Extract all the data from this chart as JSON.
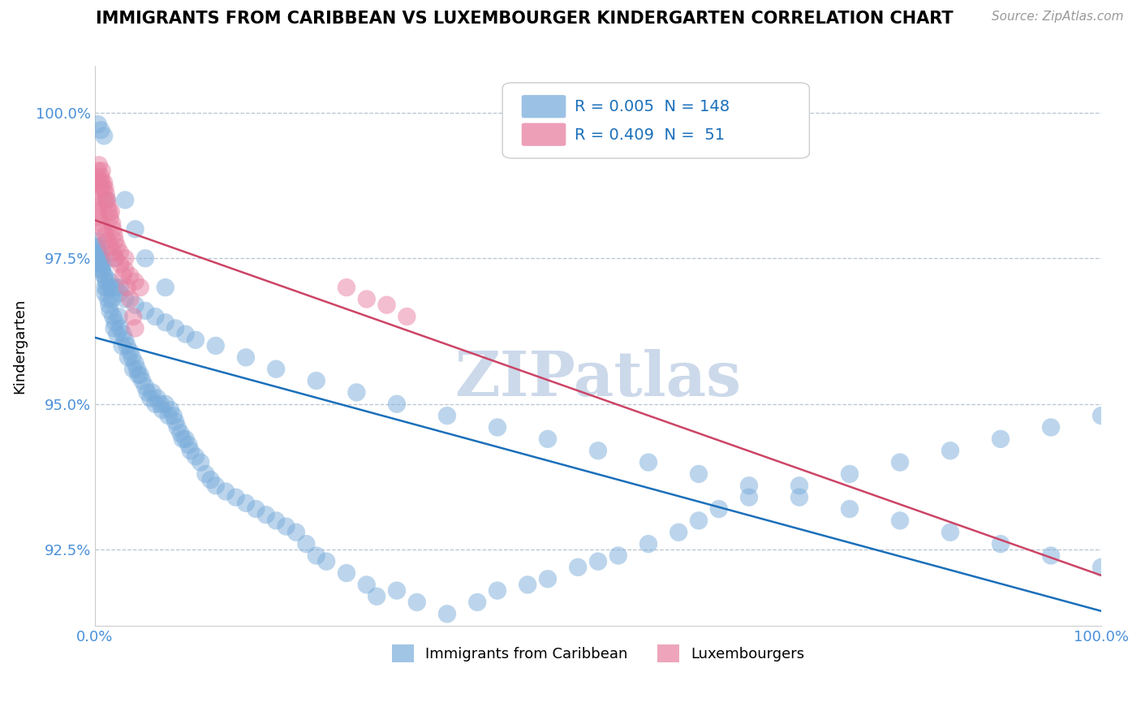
{
  "title": "IMMIGRANTS FROM CARIBBEAN VS LUXEMBOURGER KINDERGARTEN CORRELATION CHART",
  "source_text": "Source: ZipAtlas.com",
  "ylabel": "Kindergarten",
  "xlim": [
    0.0,
    1.0
  ],
  "ylim": [
    0.912,
    1.008
  ],
  "yticks": [
    0.925,
    0.95,
    0.975,
    1.0
  ],
  "ytick_labels": [
    "92.5%",
    "95.0%",
    "97.5%",
    "100.0%"
  ],
  "xtick_labels": [
    "0.0%",
    "100.0%"
  ],
  "xticks": [
    0.0,
    1.0
  ],
  "blue_color": "#7aaddb",
  "pink_color": "#e87fa0",
  "blue_line_color": "#1a6fba",
  "pink_line_color": "#cc4466",
  "legend_r_blue": "0.005",
  "legend_n_blue": "148",
  "legend_r_pink": "0.409",
  "legend_n_pink": " 51",
  "watermark": "ZIPatlas",
  "watermark_color": "#ccd9ea",
  "blue_scatter_x": [
    0.001,
    0.002,
    0.003,
    0.003,
    0.004,
    0.005,
    0.005,
    0.006,
    0.007,
    0.007,
    0.008,
    0.009,
    0.01,
    0.01,
    0.011,
    0.012,
    0.013,
    0.014,
    0.015,
    0.016,
    0.017,
    0.018,
    0.019,
    0.02,
    0.022,
    0.024,
    0.025,
    0.027,
    0.028,
    0.03,
    0.032,
    0.033,
    0.035,
    0.037,
    0.038,
    0.04,
    0.042,
    0.043,
    0.045,
    0.047,
    0.05,
    0.052,
    0.055,
    0.057,
    0.06,
    0.062,
    0.065,
    0.067,
    0.07,
    0.073,
    0.075,
    0.078,
    0.08,
    0.082,
    0.085,
    0.087,
    0.09,
    0.093,
    0.095,
    0.1,
    0.105,
    0.11,
    0.115,
    0.12,
    0.13,
    0.14,
    0.15,
    0.16,
    0.17,
    0.18,
    0.19,
    0.2,
    0.21,
    0.22,
    0.23,
    0.25,
    0.27,
    0.28,
    0.3,
    0.32,
    0.35,
    0.38,
    0.4,
    0.43,
    0.45,
    0.48,
    0.5,
    0.52,
    0.55,
    0.58,
    0.6,
    0.62,
    0.65,
    0.7,
    0.75,
    0.8,
    0.85,
    0.9,
    0.95,
    1.0,
    0.001,
    0.002,
    0.003,
    0.005,
    0.006,
    0.007,
    0.01,
    0.015,
    0.02,
    0.025,
    0.03,
    0.04,
    0.05,
    0.06,
    0.07,
    0.08,
    0.09,
    0.1,
    0.12,
    0.15,
    0.18,
    0.22,
    0.26,
    0.3,
    0.35,
    0.4,
    0.45,
    0.5,
    0.55,
    0.6,
    0.65,
    0.7,
    0.75,
    0.8,
    0.85,
    0.9,
    0.95,
    1.0,
    0.003,
    0.006,
    0.009,
    0.012,
    0.02,
    0.025,
    0.03,
    0.04,
    0.05,
    0.07
  ],
  "blue_scatter_y": [
    0.977,
    0.976,
    0.978,
    0.975,
    0.975,
    0.974,
    0.976,
    0.977,
    0.973,
    0.975,
    0.974,
    0.972,
    0.97,
    0.969,
    0.971,
    0.97,
    0.968,
    0.967,
    0.966,
    0.97,
    0.968,
    0.965,
    0.963,
    0.964,
    0.962,
    0.965,
    0.963,
    0.96,
    0.962,
    0.961,
    0.96,
    0.958,
    0.959,
    0.958,
    0.956,
    0.957,
    0.956,
    0.955,
    0.955,
    0.954,
    0.953,
    0.952,
    0.951,
    0.952,
    0.95,
    0.951,
    0.95,
    0.949,
    0.95,
    0.948,
    0.949,
    0.948,
    0.947,
    0.946,
    0.945,
    0.944,
    0.944,
    0.943,
    0.942,
    0.941,
    0.94,
    0.938,
    0.937,
    0.936,
    0.935,
    0.934,
    0.933,
    0.932,
    0.931,
    0.93,
    0.929,
    0.928,
    0.926,
    0.924,
    0.923,
    0.921,
    0.919,
    0.917,
    0.918,
    0.916,
    0.914,
    0.916,
    0.918,
    0.919,
    0.92,
    0.922,
    0.923,
    0.924,
    0.926,
    0.928,
    0.93,
    0.932,
    0.934,
    0.936,
    0.938,
    0.94,
    0.942,
    0.944,
    0.946,
    0.948,
    0.975,
    0.977,
    0.976,
    0.975,
    0.974,
    0.973,
    0.972,
    0.971,
    0.97,
    0.969,
    0.968,
    0.967,
    0.966,
    0.965,
    0.964,
    0.963,
    0.962,
    0.961,
    0.96,
    0.958,
    0.956,
    0.954,
    0.952,
    0.95,
    0.948,
    0.946,
    0.944,
    0.942,
    0.94,
    0.938,
    0.936,
    0.934,
    0.932,
    0.93,
    0.928,
    0.926,
    0.924,
    0.922,
    0.998,
    0.997,
    0.996,
    0.985,
    0.975,
    0.97,
    0.985,
    0.98,
    0.975,
    0.97
  ],
  "pink_scatter_x": [
    0.001,
    0.002,
    0.003,
    0.004,
    0.005,
    0.005,
    0.006,
    0.007,
    0.007,
    0.008,
    0.009,
    0.01,
    0.01,
    0.011,
    0.012,
    0.013,
    0.014,
    0.015,
    0.016,
    0.017,
    0.018,
    0.019,
    0.02,
    0.022,
    0.025,
    0.028,
    0.03,
    0.032,
    0.035,
    0.038,
    0.04,
    0.001,
    0.002,
    0.003,
    0.004,
    0.006,
    0.008,
    0.01,
    0.012,
    0.015,
    0.018,
    0.02,
    0.025,
    0.03,
    0.035,
    0.04,
    0.045,
    0.25,
    0.27,
    0.29,
    0.31
  ],
  "pink_scatter_y": [
    0.988,
    0.989,
    0.99,
    0.991,
    0.988,
    0.987,
    0.989,
    0.99,
    0.988,
    0.987,
    0.988,
    0.985,
    0.987,
    0.986,
    0.985,
    0.984,
    0.983,
    0.982,
    0.983,
    0.981,
    0.98,
    0.979,
    0.978,
    0.977,
    0.976,
    0.972,
    0.975,
    0.97,
    0.968,
    0.965,
    0.963,
    0.985,
    0.984,
    0.983,
    0.982,
    0.981,
    0.98,
    0.979,
    0.978,
    0.977,
    0.976,
    0.975,
    0.974,
    0.973,
    0.972,
    0.971,
    0.97,
    0.97,
    0.968,
    0.967,
    0.965
  ]
}
